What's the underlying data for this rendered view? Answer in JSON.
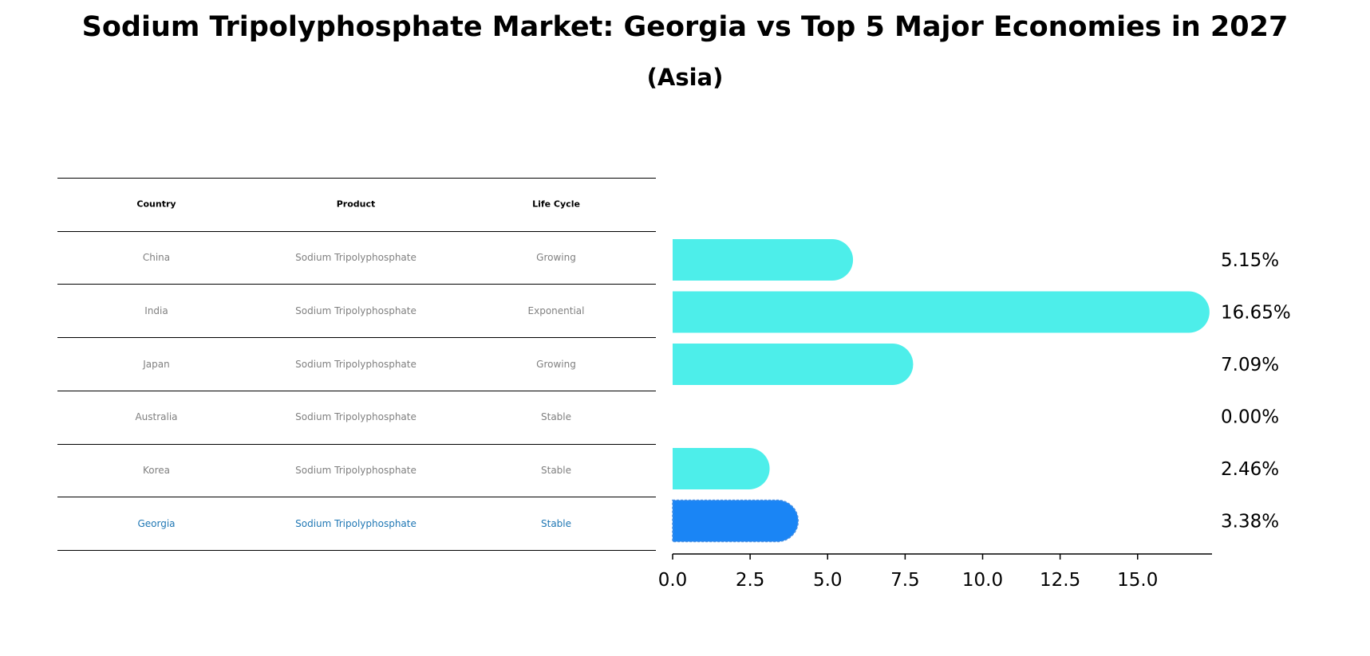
{
  "chart_data": {
    "type": "bar",
    "orientation": "horizontal",
    "title": "Sodium Tripolyphosphate Market: Georgia vs Top 5 Major Economies in 2027",
    "subtitle": "(Asia)",
    "categories": [
      "China",
      "India",
      "Japan",
      "Australia",
      "Korea",
      "Georgia"
    ],
    "values": [
      5.15,
      16.65,
      7.09,
      0.0,
      2.46,
      3.38
    ],
    "value_labels": [
      "5.15%",
      "16.65%",
      "7.09%",
      "0.00%",
      "2.46%",
      "3.38%"
    ],
    "highlight": "Georgia",
    "xlim": [
      0,
      17.4
    ],
    "xticks": [
      0.0,
      2.5,
      5.0,
      7.5,
      10.0,
      12.5,
      15.0
    ],
    "xtick_labels": [
      "0.0",
      "2.5",
      "5.0",
      "7.5",
      "10.0",
      "12.5",
      "15.0"
    ],
    "colors": {
      "default": "#4DEEEA",
      "highlight": "#1A85F5"
    }
  },
  "table": {
    "headers": [
      "Country",
      "Product",
      "Life Cycle"
    ],
    "rows": [
      [
        "China",
        "Sodium Tripolyphosphate",
        "Growing"
      ],
      [
        "India",
        "Sodium Tripolyphosphate",
        "Exponential"
      ],
      [
        "Japan",
        "Sodium Tripolyphosphate",
        "Growing"
      ],
      [
        "Australia",
        "Sodium Tripolyphosphate",
        "Stable"
      ],
      [
        "Korea",
        "Sodium Tripolyphosphate",
        "Stable"
      ],
      [
        "Georgia",
        "Sodium Tripolyphosphate",
        "Stable"
      ]
    ],
    "highlight_row": 5,
    "text_color": "#808080",
    "highlight_color": "#1f77b4"
  }
}
